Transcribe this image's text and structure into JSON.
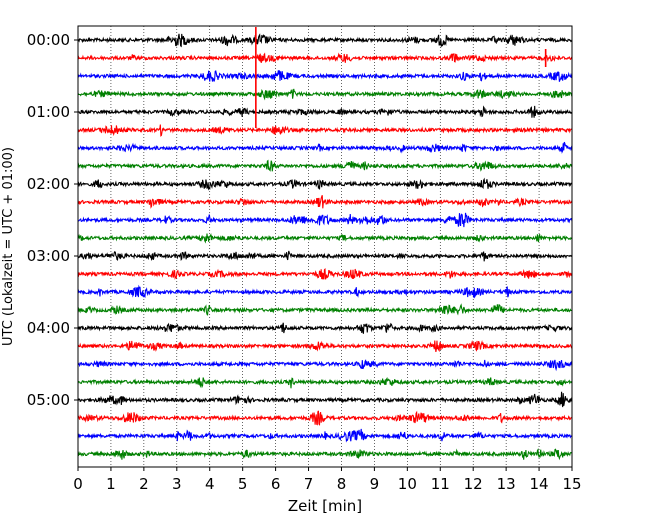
{
  "chart_data": {
    "type": "line",
    "title": "",
    "xlabel": "Zeit  [min]",
    "ylabel": "UTC (Lokalzeit = UTC + 01:00)",
    "xlim": [
      0,
      15
    ],
    "x_ticks": [
      "0",
      "1",
      "2",
      "3",
      "4",
      "5",
      "6",
      "7",
      "8",
      "9",
      "10",
      "11",
      "12",
      "13",
      "14",
      "15"
    ],
    "y_ticks": [
      "00:00",
      "01:00",
      "02:00",
      "03:00",
      "04:00",
      "05:00"
    ],
    "grid": "vertical dotted lines at each minute",
    "trace_interval_min": 15,
    "trace_colors": [
      "#000000",
      "#ff0000",
      "#0000ff",
      "#008000"
    ],
    "series": [
      {
        "start": "00:00",
        "color": "#000000"
      },
      {
        "start": "00:15",
        "color": "#ff0000"
      },
      {
        "start": "00:30",
        "color": "#0000ff"
      },
      {
        "start": "00:45",
        "color": "#008000"
      },
      {
        "start": "01:00",
        "color": "#000000"
      },
      {
        "start": "01:15",
        "color": "#ff0000"
      },
      {
        "start": "01:30",
        "color": "#0000ff"
      },
      {
        "start": "01:45",
        "color": "#008000"
      },
      {
        "start": "02:00",
        "color": "#000000"
      },
      {
        "start": "02:15",
        "color": "#ff0000"
      },
      {
        "start": "02:30",
        "color": "#0000ff"
      },
      {
        "start": "02:45",
        "color": "#008000"
      },
      {
        "start": "03:00",
        "color": "#000000"
      },
      {
        "start": "03:15",
        "color": "#ff0000"
      },
      {
        "start": "03:30",
        "color": "#0000ff"
      },
      {
        "start": "03:45",
        "color": "#008000"
      },
      {
        "start": "04:00",
        "color": "#000000"
      },
      {
        "start": "04:15",
        "color": "#ff0000"
      },
      {
        "start": "04:30",
        "color": "#0000ff"
      },
      {
        "start": "04:45",
        "color": "#008000"
      },
      {
        "start": "05:00",
        "color": "#000000"
      },
      {
        "start": "05:15",
        "color": "#ff0000"
      },
      {
        "start": "05:30",
        "color": "#0000ff"
      },
      {
        "start": "05:45",
        "color": "#008000"
      }
    ],
    "events": [
      {
        "trace": "00:15",
        "x": 5.4,
        "amplitude": "large",
        "color": "#ff0000"
      },
      {
        "trace": "00:15",
        "x": 14.2,
        "amplitude": "medium",
        "color": "#ff0000"
      }
    ]
  }
}
